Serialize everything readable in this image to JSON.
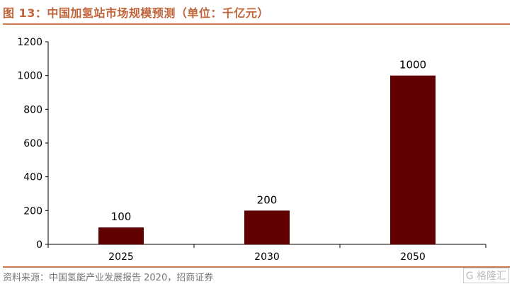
{
  "title": "图 13：中国加氢站市场规模预测（单位：千亿元）",
  "source": "资料来源：中国氢能产业发展报告 2020，招商证券",
  "watermark": "格隆汇",
  "colors": {
    "bar": "#600000",
    "title": "#c0653a"
  },
  "chart_data": {
    "type": "bar",
    "title": "中国加氢站市场规模预测（单位：千亿元）",
    "categories": [
      "2025",
      "2030",
      "2050"
    ],
    "values": [
      100,
      200,
      1000
    ],
    "data_labels": [
      "100",
      "200",
      "1000"
    ],
    "ylim": [
      0,
      1200
    ],
    "yticks": [
      0,
      200,
      400,
      600,
      800,
      1000,
      1200
    ],
    "grid": false,
    "legend": "none"
  }
}
